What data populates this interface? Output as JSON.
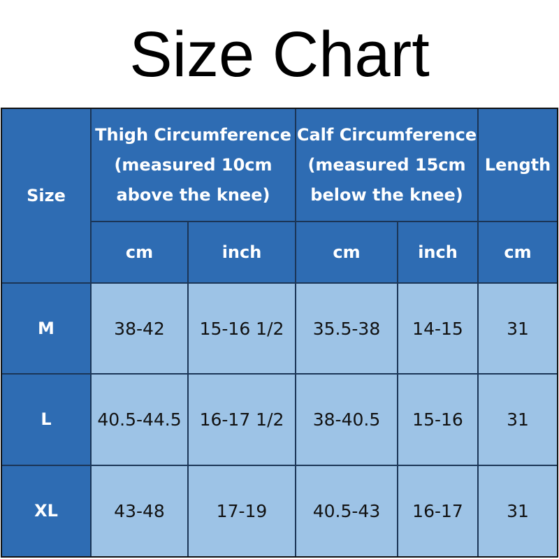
{
  "title": "Size Chart",
  "table": {
    "header": {
      "size": "Size",
      "groups": [
        {
          "lines": [
            "Thigh Circumference",
            "(measured 10cm",
            "above the knee)"
          ]
        },
        {
          "lines": [
            "Calf Circumference",
            "(measured 15cm",
            "below the knee)"
          ]
        },
        {
          "lines": [
            "Length"
          ]
        }
      ],
      "units": [
        "cm",
        "inch",
        "cm",
        "inch",
        "cm"
      ]
    },
    "rows": [
      [
        "M",
        "38-42",
        "15-16 1/2",
        "35.5-38",
        "14-15",
        "31"
      ],
      [
        "L",
        "40.5-44.5",
        "16-17 1/2",
        "38-40.5",
        "15-16",
        "31"
      ],
      [
        "XL",
        "43-48",
        "17-19",
        "40.5-43",
        "16-17",
        "31"
      ]
    ]
  }
}
